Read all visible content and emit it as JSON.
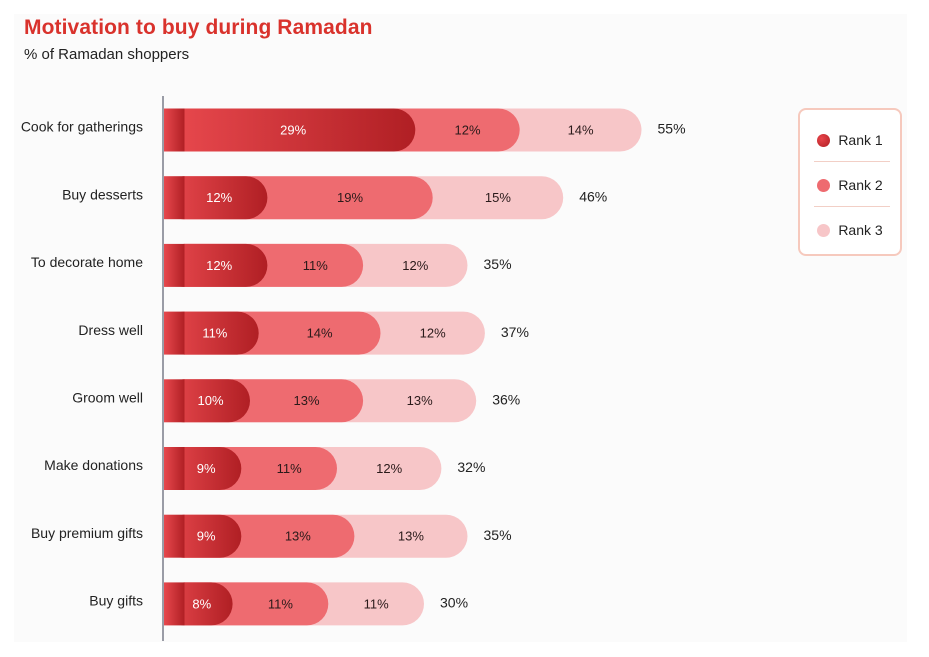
{
  "chart_data": {
    "type": "bar",
    "orientation": "horizontal",
    "stacked": true,
    "title": "Motivation to buy during Ramadan",
    "subtitle": "% of Ramadan shoppers",
    "xlabel": "",
    "ylabel": "",
    "categories": [
      "Cook for gatherings",
      "Buy desserts",
      "To decorate home",
      "Dress well",
      "Groom well",
      "Make donations",
      "Buy premium gifts",
      "Buy gifts"
    ],
    "series": [
      {
        "name": "Rank 1",
        "values": [
          29,
          12,
          12,
          11,
          10,
          9,
          9,
          8
        ],
        "color": "#c8222a"
      },
      {
        "name": "Rank 2",
        "values": [
          12,
          19,
          11,
          14,
          13,
          11,
          13,
          11
        ],
        "color": "#ee6b70"
      },
      {
        "name": "Rank 3",
        "values": [
          14,
          15,
          12,
          12,
          13,
          12,
          13,
          11
        ],
        "color": "#f7c6c8"
      }
    ],
    "totals": [
      55,
      46,
      35,
      37,
      36,
      32,
      35,
      30
    ],
    "legend_position": "top-right",
    "grid": false
  }
}
